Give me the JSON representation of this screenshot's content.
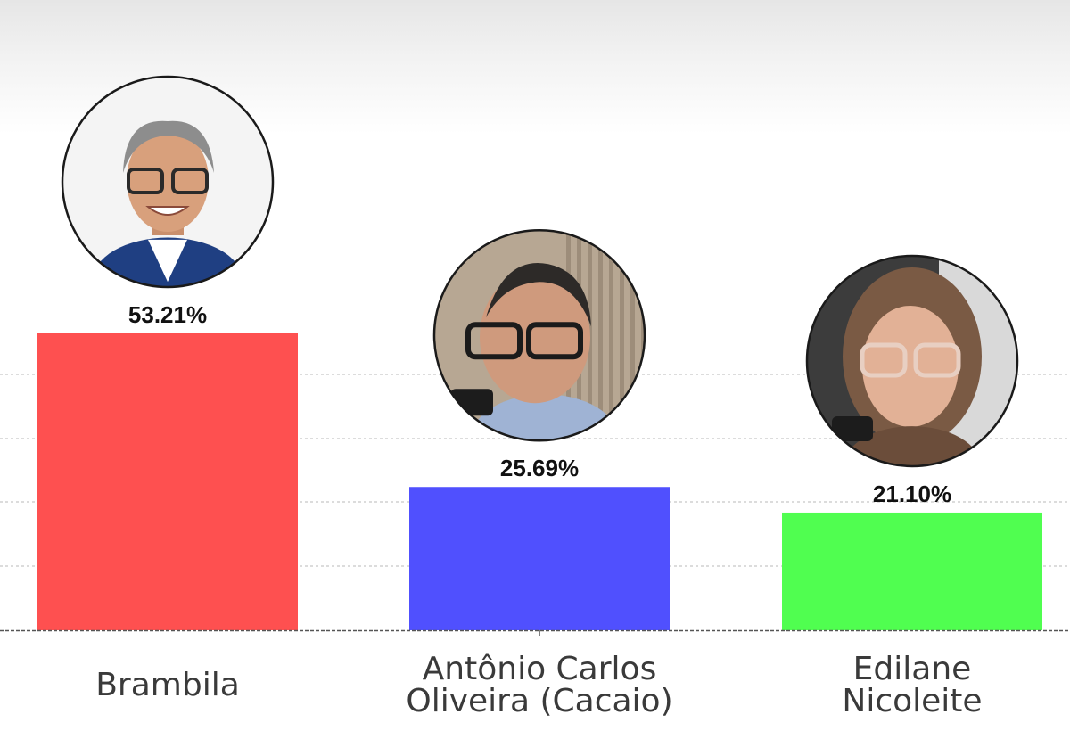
{
  "chart_data": {
    "type": "bar",
    "title": "",
    "xlabel": "",
    "ylabel": "",
    "ylim": [
      0,
      70
    ],
    "grid": true,
    "categories": [
      "Brambila",
      "Antônio Carlos Oliveira (Cacaio)",
      "Edilane Nicoleite"
    ],
    "category_lines": [
      [
        "Brambila"
      ],
      [
        "Antônio Carlos",
        "Oliveira (Cacaio)"
      ],
      [
        "Edilane",
        "Nicoleite"
      ]
    ],
    "values": [
      53.21,
      25.69,
      21.1
    ],
    "value_labels": [
      "53.21%",
      "25.69%",
      "21.10%"
    ],
    "colors": [
      "#fe5050",
      "#5050fe",
      "#50fe50"
    ],
    "photos": [
      "man-with-glasses-portrait",
      "man-with-glasses-portrait",
      "woman-with-glasses-portrait"
    ]
  }
}
